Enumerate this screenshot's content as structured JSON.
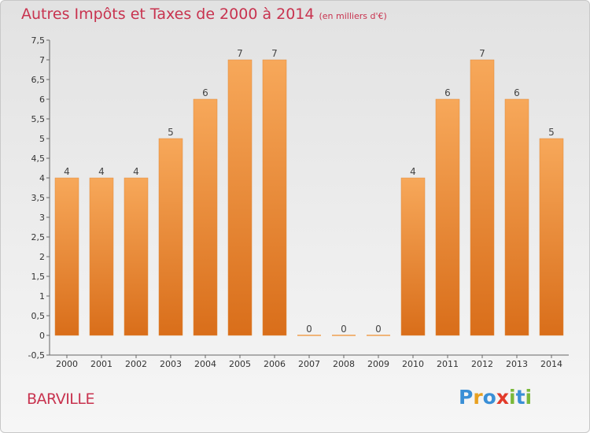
{
  "header": {
    "title": "Autres Impôts et Taxes de 2000 à 2014",
    "unit": "(en milliers d'€)"
  },
  "footer": {
    "commune": "BARVILLE",
    "logo_text": "Proxiti",
    "logo_letters": [
      {
        "char": "P",
        "color": "#3a8fd6"
      },
      {
        "char": "r",
        "color": "#e8a020"
      },
      {
        "char": "o",
        "color": "#3a8fd6"
      },
      {
        "char": "x",
        "color": "#e23a2a"
      },
      {
        "char": "i",
        "color": "#7ab83a"
      },
      {
        "char": "t",
        "color": "#3a8fd6"
      },
      {
        "char": "i",
        "color": "#7ab83a"
      }
    ]
  },
  "chart_data": {
    "type": "bar",
    "title": "Autres Impôts et Taxes de 2000 à 2014",
    "xlabel": "",
    "ylabel": "",
    "categories": [
      "2000",
      "2001",
      "2002",
      "2003",
      "2004",
      "2005",
      "2006",
      "2007",
      "2008",
      "2009",
      "2010",
      "2011",
      "2012",
      "2013",
      "2014"
    ],
    "values": [
      4,
      4,
      4,
      5,
      6,
      7,
      7,
      0,
      0,
      0,
      4,
      6,
      7,
      6,
      5
    ],
    "data_labels": [
      "4",
      "4",
      "4",
      "5",
      "6",
      "7",
      "7",
      "0",
      "0",
      "0",
      "4",
      "6",
      "7",
      "6",
      "5"
    ],
    "ylim": [
      -0.5,
      7.5
    ],
    "yticks": [
      "-0,5",
      "0",
      "0,5",
      "1",
      "1,5",
      "2",
      "2,5",
      "3",
      "3,5",
      "4",
      "4,5",
      "5",
      "5,5",
      "6",
      "6,5",
      "7",
      "7,5"
    ],
    "ytick_values": [
      -0.5,
      0,
      0.5,
      1,
      1.5,
      2,
      2.5,
      3,
      3.5,
      4,
      4.5,
      5,
      5.5,
      6,
      6.5,
      7,
      7.5
    ],
    "grid": false,
    "legend": "none",
    "bar_color_top": "#f7a85a",
    "bar_color_bottom": "#d96e1a",
    "title_color": "#c8334f"
  }
}
